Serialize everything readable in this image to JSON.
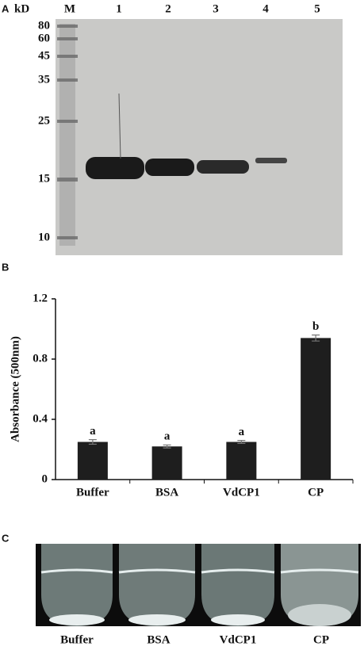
{
  "panels": {
    "a": "A",
    "b": "B",
    "c": "C"
  },
  "gel": {
    "unit": "kD",
    "marker": "M",
    "lanes": [
      "1",
      "2",
      "3",
      "4",
      "5"
    ],
    "sizes": [
      "80",
      "60",
      "45",
      "35",
      "25",
      "15",
      "10"
    ]
  },
  "chart_data": {
    "type": "bar",
    "y_label": "Absorbance (500nm)",
    "categories": [
      "Buffer",
      "BSA",
      "VdCP1",
      "CP"
    ],
    "values": [
      0.25,
      0.22,
      0.25,
      0.94
    ],
    "errors": [
      0.015,
      0.01,
      0.01,
      0.02
    ],
    "annotations": [
      "a",
      "a",
      "a",
      "b"
    ],
    "color": "#1e1e1e",
    "ylim": [
      0,
      1.2
    ],
    "yticks": [
      0,
      0.4,
      0.8,
      1.2
    ]
  },
  "photo": {
    "labels": [
      "Buffer",
      "BSA",
      "VdCP1",
      "CP"
    ]
  }
}
